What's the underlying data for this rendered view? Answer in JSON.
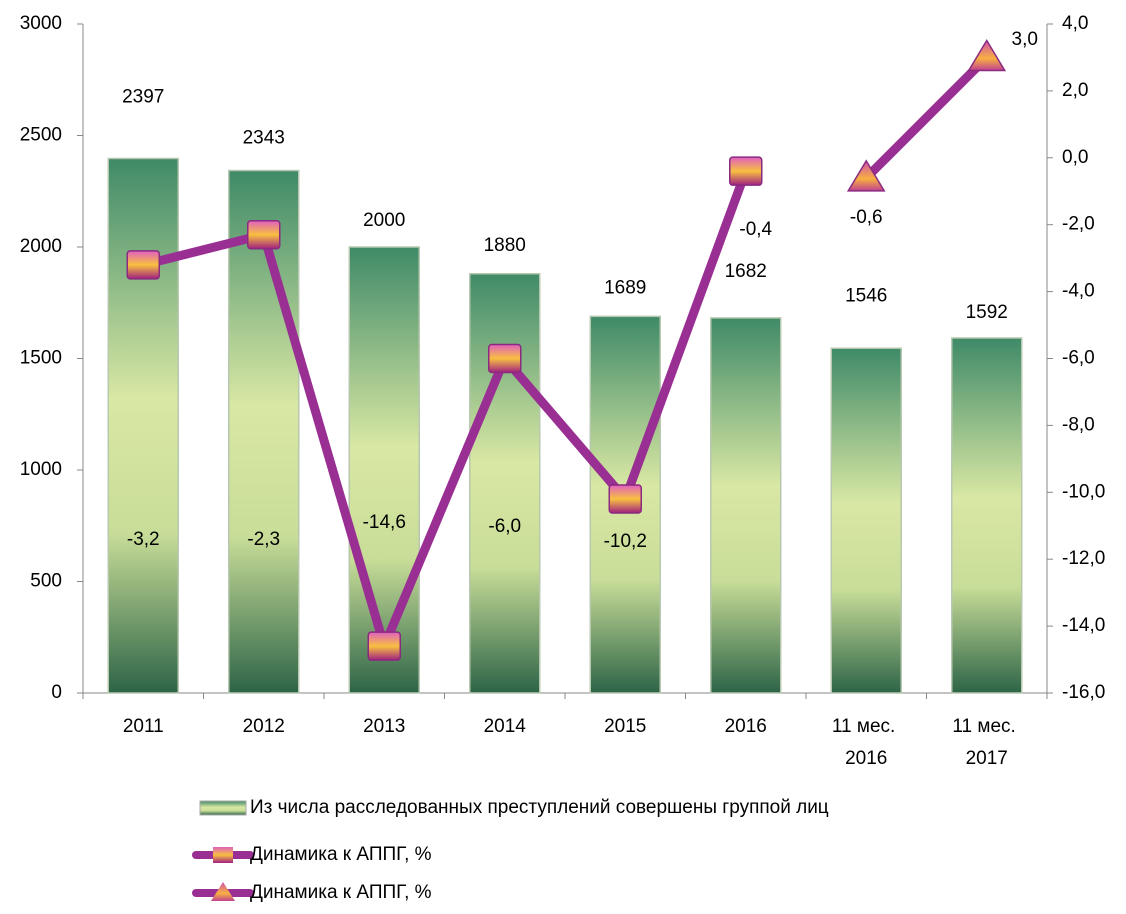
{
  "chart_data": {
    "type": "bar_line",
    "categories": [
      "2011",
      "2012",
      "2013",
      "2014",
      "2015",
      "2016",
      "11 мес. 2016",
      "11 мес. 2017"
    ],
    "series": [
      {
        "name": "Из числа расследованных преступлений совершены группой лиц",
        "type": "bar",
        "color": "#3a8a62",
        "values": [
          2397,
          2343,
          2000,
          1880,
          1689,
          1682,
          1546,
          1592
        ]
      },
      {
        "name": "Динамика к АППГ, %",
        "type": "line",
        "axis": "y2",
        "marker": "square",
        "color": "#9a2f93",
        "values": [
          -3.2,
          -2.3,
          -14.6,
          -6.0,
          -10.2,
          -0.4,
          null,
          null
        ],
        "value_labels": [
          "-3,2",
          "-2,3",
          "-14,6",
          "-6,0",
          "-10,2",
          "-0,4",
          null,
          null
        ]
      },
      {
        "name": "Динамика к АППГ, %",
        "type": "line",
        "axis": "y2",
        "marker": "triangle",
        "color": "#9a2f93",
        "values": [
          null,
          null,
          null,
          null,
          null,
          null,
          -0.6,
          3.0
        ],
        "value_labels": [
          null,
          null,
          null,
          null,
          null,
          null,
          "-0,6",
          "3,0"
        ]
      }
    ],
    "ylim": [
      0,
      3000
    ],
    "yticks": [
      0,
      500,
      1000,
      1500,
      2000,
      2500,
      3000
    ],
    "y2lim": [
      -16,
      4
    ],
    "y2ticks": [
      {
        "value": -16,
        "label": "-16,0"
      },
      {
        "value": -14,
        "label": "-14,0"
      },
      {
        "value": -12,
        "label": "-12,0"
      },
      {
        "value": -10,
        "label": "-10,0"
      },
      {
        "value": -8,
        "label": "-8,0"
      },
      {
        "value": -6,
        "label": "-6,0"
      },
      {
        "value": -4,
        "label": "-4,0"
      },
      {
        "value": -2,
        "label": "-2,0"
      },
      {
        "value": 0,
        "label": "0,0"
      },
      {
        "value": 2,
        "label": "2,0"
      },
      {
        "value": 4,
        "label": "4,0"
      }
    ],
    "legend": "bottom"
  }
}
